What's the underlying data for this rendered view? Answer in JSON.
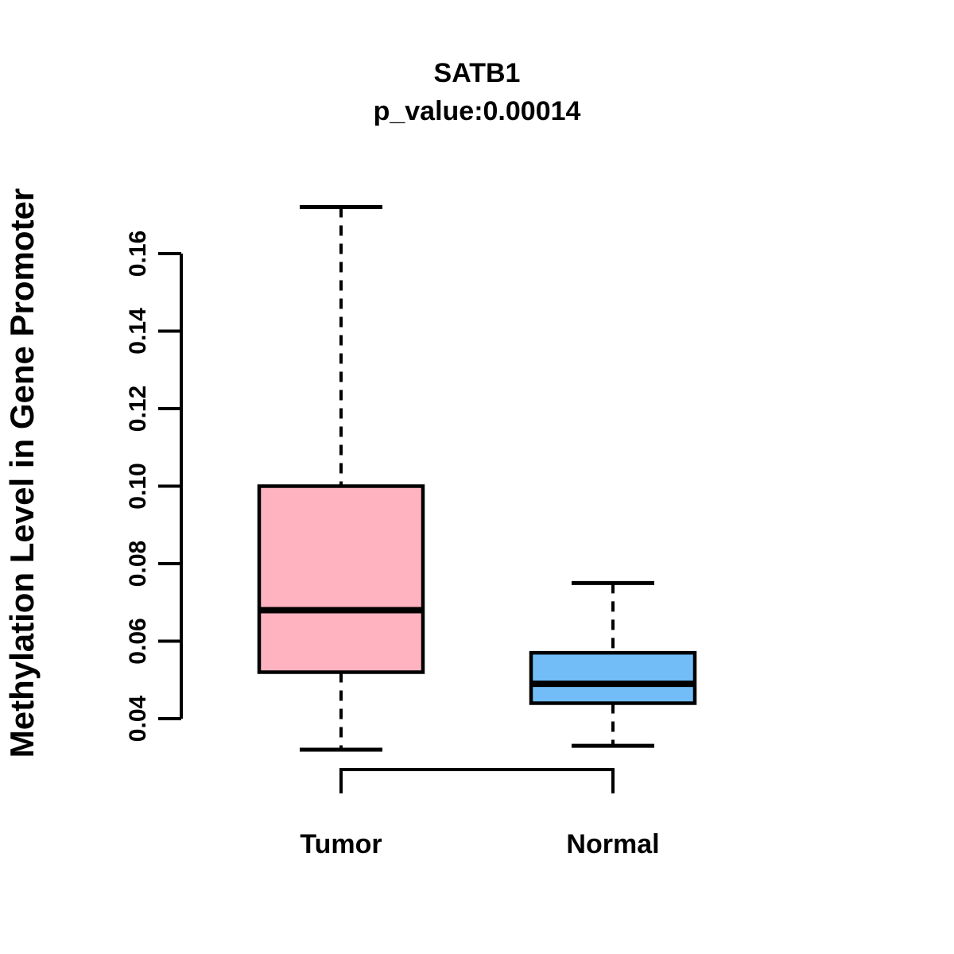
{
  "title": {
    "line1": "SATB1",
    "line2": "p_value:0.00014"
  },
  "chart_data": {
    "type": "boxplot",
    "title": "SATB1",
    "subtitle": "p_value:0.00014",
    "p_value": 0.00014,
    "ylabel": "Methylation Level in Gene Promoter",
    "xlabel": "",
    "ylim": [
      0.04,
      0.16
    ],
    "y_ticks": [
      0.04,
      0.06,
      0.08,
      0.1,
      0.12,
      0.14,
      0.16
    ],
    "y_tick_labels": [
      "0.04",
      "0.06",
      "0.08",
      "0.10",
      "0.12",
      "0.14",
      "0.16"
    ],
    "categories": [
      "Tumor",
      "Normal"
    ],
    "series": [
      {
        "name": "Tumor",
        "lower_whisker": 0.032,
        "q1": 0.052,
        "median": 0.068,
        "q3": 0.1,
        "upper_whisker": 0.172,
        "fill_color": "#FFB3C1"
      },
      {
        "name": "Normal",
        "lower_whisker": 0.033,
        "q1": 0.044,
        "median": 0.049,
        "q3": 0.057,
        "upper_whisker": 0.075,
        "fill_color": "#72BDF7"
      }
    ],
    "whisker_style": "dashed",
    "box_line_color": "#000000",
    "background_color": "#FFFFFF",
    "grid": false,
    "legend": false
  }
}
